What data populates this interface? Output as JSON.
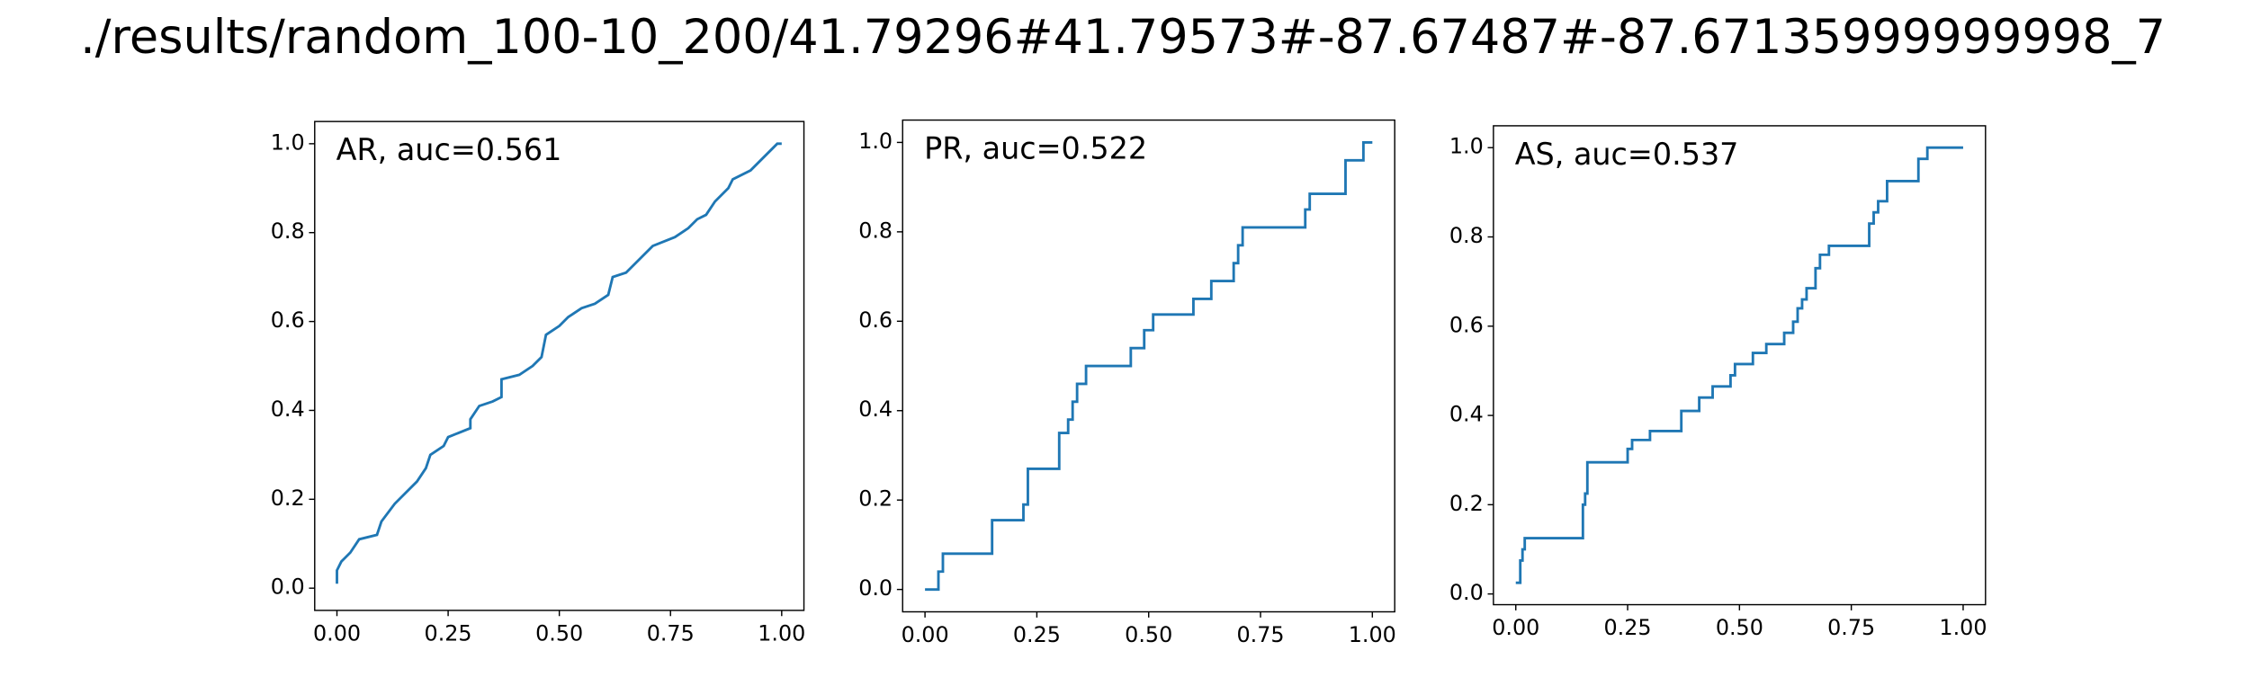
{
  "title": "./results/random_100-10_200/41.79296#41.79573#-87.67487#-87.67135999999998_7",
  "chart_data": [
    {
      "type": "line",
      "annotation": "AR, auc=0.561",
      "color": "#1f77b4",
      "x": [
        0,
        0,
        0.01,
        0.03,
        0.05,
        0.09,
        0.1,
        0.13,
        0.15,
        0.18,
        0.2,
        0.21,
        0.24,
        0.25,
        0.3,
        0.3,
        0.32,
        0.35,
        0.37,
        0.37,
        0.41,
        0.44,
        0.46,
        0.47,
        0.5,
        0.52,
        0.55,
        0.58,
        0.61,
        0.62,
        0.65,
        0.67,
        0.71,
        0.76,
        0.79,
        0.81,
        0.83,
        0.85,
        0.88,
        0.89,
        0.93,
        0.96,
        0.98,
        0.99,
        1
      ],
      "values": [
        0.01,
        0.04,
        0.06,
        0.08,
        0.11,
        0.12,
        0.15,
        0.19,
        0.21,
        0.24,
        0.27,
        0.3,
        0.32,
        0.34,
        0.36,
        0.38,
        0.41,
        0.42,
        0.43,
        0.47,
        0.48,
        0.5,
        0.52,
        0.57,
        0.59,
        0.61,
        0.63,
        0.64,
        0.66,
        0.7,
        0.71,
        0.73,
        0.77,
        0.79,
        0.81,
        0.83,
        0.84,
        0.87,
        0.9,
        0.92,
        0.94,
        0.97,
        0.99,
        1.0,
        1.0
      ],
      "xlim": [
        -0.05,
        1.05
      ],
      "ylim": [
        -0.05,
        1.05
      ],
      "xticks": [
        {
          "value": 0,
          "label": "0.00"
        },
        0.25,
        {
          "value": 0.5,
          "label": "0.50"
        },
        0.75,
        {
          "value": 1,
          "label": "1.00"
        }
      ],
      "yticks": [
        {
          "value": 0,
          "label": "0.0"
        },
        0.2,
        0.4,
        0.6,
        0.8,
        {
          "value": 1,
          "label": "1.0"
        }
      ]
    },
    {
      "type": "line",
      "annotation": "PR, auc=0.522",
      "color": "#1f77b4",
      "x": [
        0,
        0.03,
        0.03,
        0.04,
        0.04,
        0.15,
        0.15,
        0.22,
        0.22,
        0.23,
        0.23,
        0.3,
        0.3,
        0.32,
        0.32,
        0.33,
        0.33,
        0.34,
        0.34,
        0.36,
        0.36,
        0.46,
        0.46,
        0.49,
        0.49,
        0.51,
        0.51,
        0.6,
        0.6,
        0.64,
        0.64,
        0.69,
        0.69,
        0.7,
        0.7,
        0.71,
        0.71,
        0.85,
        0.85,
        0.86,
        0.86,
        0.94,
        0.94,
        0.98,
        0.98,
        1
      ],
      "values": [
        0,
        0,
        0.04,
        0.04,
        0.08,
        0.08,
        0.155,
        0.155,
        0.19,
        0.19,
        0.27,
        0.27,
        0.35,
        0.35,
        0.38,
        0.38,
        0.42,
        0.42,
        0.46,
        0.46,
        0.5,
        0.5,
        0.54,
        0.54,
        0.58,
        0.58,
        0.615,
        0.615,
        0.65,
        0.65,
        0.69,
        0.69,
        0.73,
        0.73,
        0.77,
        0.77,
        0.81,
        0.81,
        0.85,
        0.85,
        0.885,
        0.885,
        0.96,
        0.96,
        1.0,
        1.0
      ],
      "xlim": [
        -0.05,
        1.05
      ],
      "ylim": [
        -0.05,
        1.05
      ],
      "xticks": [
        {
          "value": 0,
          "label": "0.00"
        },
        0.25,
        {
          "value": 0.5,
          "label": "0.50"
        },
        0.75,
        {
          "value": 1,
          "label": "1.00"
        }
      ],
      "yticks": [
        {
          "value": 0,
          "label": "0.0"
        },
        0.2,
        0.4,
        0.6,
        0.8,
        {
          "value": 1,
          "label": "1.0"
        }
      ]
    },
    {
      "type": "line",
      "annotation": "AS, auc=0.537",
      "color": "#1f77b4",
      "x": [
        0,
        0.01,
        0.01,
        0.015,
        0.015,
        0.02,
        0.02,
        0.15,
        0.15,
        0.155,
        0.155,
        0.16,
        0.16,
        0.25,
        0.25,
        0.26,
        0.26,
        0.3,
        0.3,
        0.37,
        0.37,
        0.41,
        0.41,
        0.44,
        0.44,
        0.48,
        0.48,
        0.49,
        0.49,
        0.53,
        0.53,
        0.56,
        0.56,
        0.6,
        0.6,
        0.62,
        0.62,
        0.63,
        0.63,
        0.64,
        0.64,
        0.65,
        0.65,
        0.67,
        0.67,
        0.68,
        0.68,
        0.7,
        0.7,
        0.79,
        0.79,
        0.8,
        0.8,
        0.81,
        0.81,
        0.83,
        0.83,
        0.9,
        0.9,
        0.92,
        0.92,
        1
      ],
      "values": [
        0.025,
        0.025,
        0.075,
        0.075,
        0.1,
        0.1,
        0.125,
        0.125,
        0.2,
        0.2,
        0.225,
        0.225,
        0.295,
        0.295,
        0.325,
        0.325,
        0.345,
        0.345,
        0.365,
        0.365,
        0.41,
        0.41,
        0.44,
        0.44,
        0.465,
        0.465,
        0.49,
        0.49,
        0.515,
        0.515,
        0.54,
        0.54,
        0.56,
        0.56,
        0.585,
        0.585,
        0.61,
        0.61,
        0.64,
        0.64,
        0.66,
        0.66,
        0.685,
        0.685,
        0.73,
        0.73,
        0.76,
        0.76,
        0.78,
        0.78,
        0.83,
        0.83,
        0.855,
        0.855,
        0.88,
        0.88,
        0.925,
        0.925,
        0.975,
        0.975,
        1.0,
        1.0
      ],
      "xlim": [
        -0.05,
        1.05
      ],
      "ylim": [
        -0.024,
        1.049
      ],
      "xticks": [
        {
          "value": 0,
          "label": "0.00"
        },
        0.25,
        {
          "value": 0.5,
          "label": "0.50"
        },
        0.75,
        {
          "value": 1,
          "label": "1.00"
        }
      ],
      "yticks": [
        {
          "value": 0,
          "label": "0.0"
        },
        0.2,
        0.4,
        0.6,
        0.8,
        {
          "value": 1,
          "label": "1.0"
        }
      ]
    }
  ]
}
